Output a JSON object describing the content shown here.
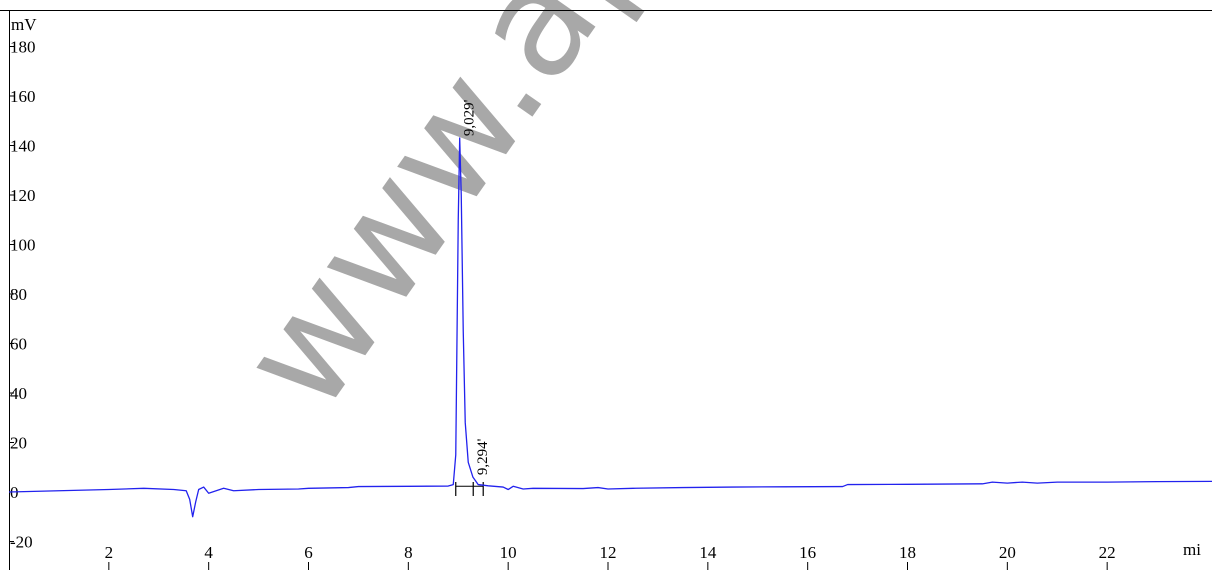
{
  "chart_data": {
    "type": "line",
    "title": "",
    "ylabel": "mV",
    "xlabel": "mi",
    "xlim": [
      0,
      24.1
    ],
    "ylim": [
      -20,
      190
    ],
    "yticks": [
      180,
      160,
      140,
      120,
      100,
      80,
      60,
      40,
      20,
      0,
      -20
    ],
    "yticks_display": [
      "180",
      "160",
      "140",
      "120",
      "100",
      "80",
      "60",
      "40",
      "20",
      "0",
      "-20"
    ],
    "xticks": [
      2,
      4,
      6,
      8,
      10,
      12,
      14,
      16,
      18,
      20,
      22
    ],
    "xticks_display": [
      "2",
      "4",
      "6",
      "8",
      "10",
      "12",
      "14",
      "16",
      "18",
      "20",
      "22"
    ],
    "grid": false,
    "line_color": "#2222ee",
    "series": [
      {
        "values": [
          [
            0,
            0.0
          ],
          [
            2,
            1.0
          ],
          [
            2.7,
            1.5
          ],
          [
            3.3,
            1.0
          ],
          [
            3.55,
            0.5
          ],
          [
            3.62,
            -3.0
          ],
          [
            3.68,
            -10.0
          ],
          [
            3.74,
            -4.0
          ],
          [
            3.8,
            1.0
          ],
          [
            3.9,
            2.0
          ],
          [
            4.0,
            -0.5
          ],
          [
            4.15,
            0.5
          ],
          [
            4.3,
            1.5
          ],
          [
            4.5,
            0.5
          ],
          [
            5.0,
            1.0
          ],
          [
            5.8,
            1.2
          ],
          [
            6.0,
            1.5
          ],
          [
            6.8,
            1.8
          ],
          [
            7.0,
            2.2
          ],
          [
            8.0,
            2.3
          ],
          [
            8.8,
            2.4
          ],
          [
            8.9,
            3.0
          ],
          [
            8.95,
            15.0
          ],
          [
            9.0,
            110.0
          ],
          [
            9.029,
            143.0
          ],
          [
            9.06,
            120.0
          ],
          [
            9.1,
            65.0
          ],
          [
            9.14,
            28.0
          ],
          [
            9.2,
            12.0
          ],
          [
            9.294,
            6.0
          ],
          [
            9.4,
            3.0
          ],
          [
            9.6,
            2.5
          ],
          [
            9.9,
            2.0
          ],
          [
            10.0,
            1.0
          ],
          [
            10.1,
            2.3
          ],
          [
            10.3,
            1.2
          ],
          [
            10.5,
            1.5
          ],
          [
            11.5,
            1.4
          ],
          [
            11.8,
            1.8
          ],
          [
            12.0,
            1.2
          ],
          [
            12.5,
            1.5
          ],
          [
            13.5,
            1.8
          ],
          [
            14.5,
            2.0
          ],
          [
            15.5,
            2.1
          ],
          [
            16.7,
            2.2
          ],
          [
            16.8,
            3.0
          ],
          [
            18.0,
            3.1
          ],
          [
            19.5,
            3.3
          ],
          [
            19.7,
            4.0
          ],
          [
            20.0,
            3.6
          ],
          [
            20.3,
            4.0
          ],
          [
            20.6,
            3.6
          ],
          [
            21.0,
            4.0
          ],
          [
            22.0,
            4.0
          ],
          [
            23.0,
            4.2
          ],
          [
            24.1,
            4.3
          ]
        ]
      }
    ],
    "annotations": [
      {
        "x": 9.029,
        "y": 143.0,
        "text": "9,029'"
      },
      {
        "x": 9.294,
        "y": 6.0,
        "text": "9,294'"
      }
    ],
    "integration_marks": [
      8.95,
      9.3,
      9.5
    ]
  },
  "watermark": "www.apex"
}
